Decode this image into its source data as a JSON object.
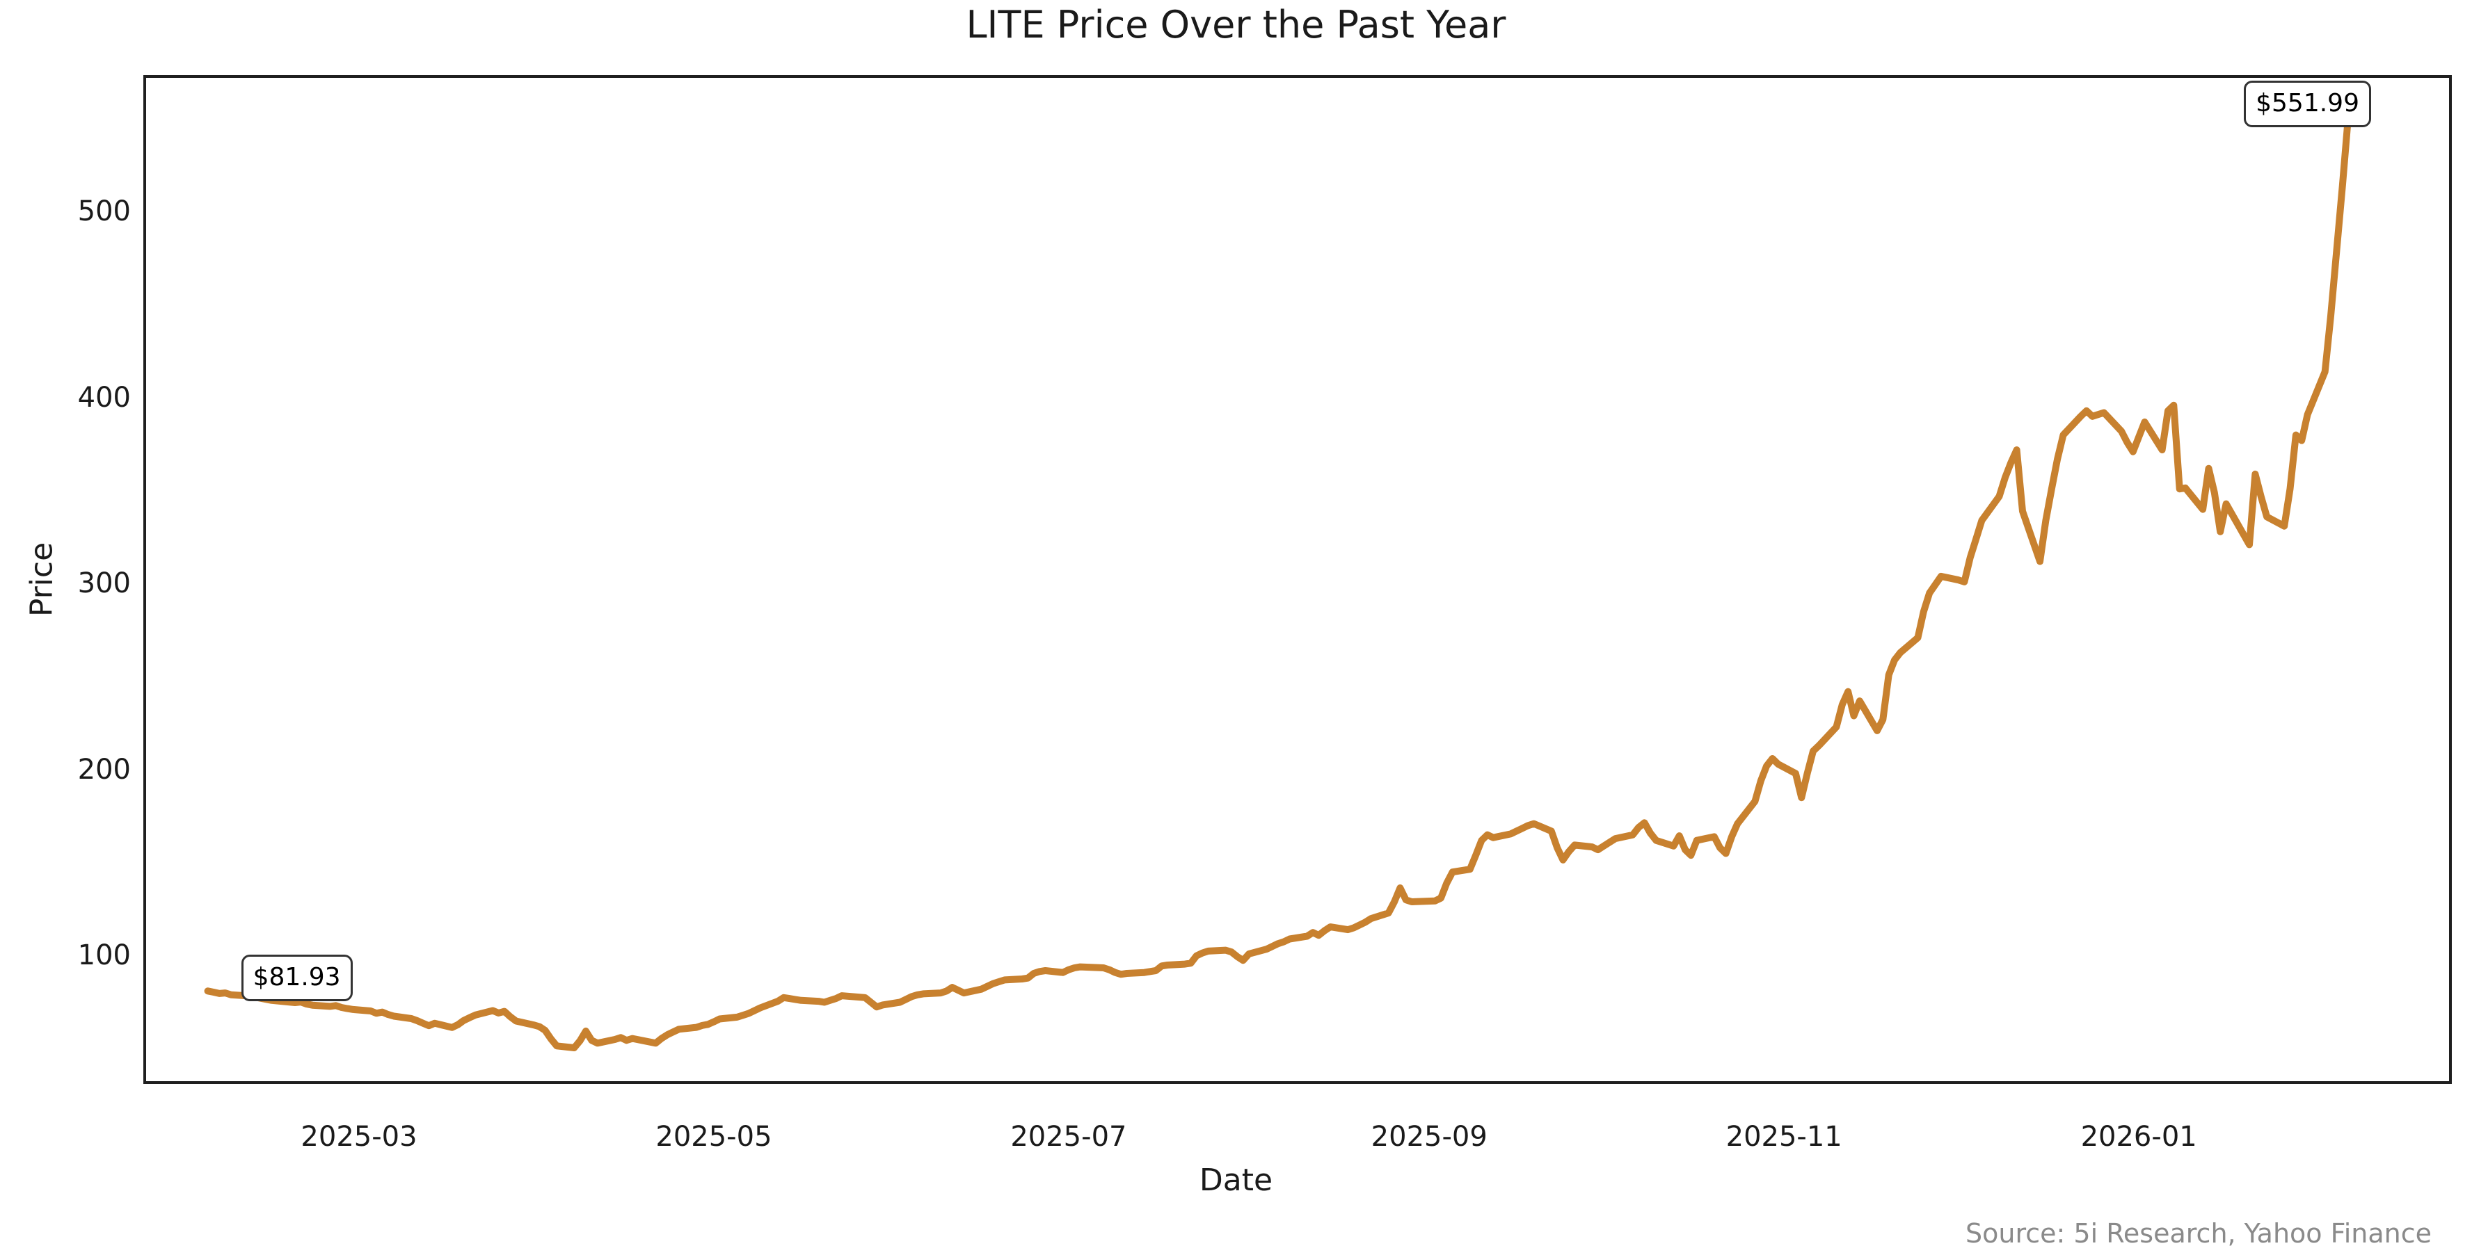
{
  "chart_data": {
    "type": "line",
    "title": "LITE Price Over the Past Year",
    "xlabel": "Date",
    "ylabel": "Price",
    "source_note": "Source: 5i Research, Yahoo Finance",
    "line_color": "#C8812F",
    "axis_color": "#1f1f1f",
    "background_color": "#ffffff",
    "legend": "none",
    "grid": false,
    "ylim": [
      33,
      573
    ],
    "x_ticks": [
      {
        "label": "2025-03",
        "date": "2025-03-01"
      },
      {
        "label": "2025-05",
        "date": "2025-05-01"
      },
      {
        "label": "2025-07",
        "date": "2025-07-01"
      },
      {
        "label": "2025-09",
        "date": "2025-09-01"
      },
      {
        "label": "2025-11",
        "date": "2025-11-01"
      },
      {
        "label": "2026-01",
        "date": "2026-01-01"
      }
    ],
    "y_ticks": [
      {
        "label": "100",
        "value": 100
      },
      {
        "label": "200",
        "value": 200
      },
      {
        "label": "300",
        "value": 300
      },
      {
        "label": "400",
        "value": 400
      },
      {
        "label": "500",
        "value": 500
      }
    ],
    "annotations": [
      {
        "label": "$81.93",
        "date": "2025-02-03",
        "price": 81.93
      },
      {
        "label": "$551.99",
        "date": "2026-02-06",
        "price": 551.99
      }
    ],
    "series": [
      {
        "name": "LITE",
        "points": [
          [
            "2025-02-03",
            81.93
          ],
          [
            "2025-02-04",
            81.3
          ],
          [
            "2025-02-05",
            80.6
          ],
          [
            "2025-02-06",
            80.9
          ],
          [
            "2025-02-07",
            79.9
          ],
          [
            "2025-02-10",
            79.3
          ],
          [
            "2025-02-11",
            78.7
          ],
          [
            "2025-02-12",
            78.1
          ],
          [
            "2025-02-13",
            77.5
          ],
          [
            "2025-02-14",
            76.9
          ],
          [
            "2025-02-18",
            75.7
          ],
          [
            "2025-02-19",
            76.0
          ],
          [
            "2025-02-20",
            74.9
          ],
          [
            "2025-02-21",
            74.3
          ],
          [
            "2025-02-24",
            73.7
          ],
          [
            "2025-02-25",
            74.1
          ],
          [
            "2025-02-26",
            73.1
          ],
          [
            "2025-02-27",
            72.5
          ],
          [
            "2025-02-28",
            72.0
          ],
          [
            "2025-03-03",
            71.2
          ],
          [
            "2025-03-04",
            70.0
          ],
          [
            "2025-03-05",
            70.6
          ],
          [
            "2025-03-06",
            69.3
          ],
          [
            "2025-03-07",
            68.4
          ],
          [
            "2025-03-10",
            67.1
          ],
          [
            "2025-03-11",
            66.0
          ],
          [
            "2025-03-12",
            64.6
          ],
          [
            "2025-03-13",
            63.3
          ],
          [
            "2025-03-14",
            64.6
          ],
          [
            "2025-03-17",
            62.3
          ],
          [
            "2025-03-18",
            63.8
          ],
          [
            "2025-03-19",
            66.1
          ],
          [
            "2025-03-20",
            67.6
          ],
          [
            "2025-03-21",
            69.0
          ],
          [
            "2025-03-24",
            71.4
          ],
          [
            "2025-03-25",
            70.1
          ],
          [
            "2025-03-26",
            71.0
          ],
          [
            "2025-03-27",
            68.1
          ],
          [
            "2025-03-28",
            65.8
          ],
          [
            "2025-03-31",
            63.7
          ],
          [
            "2025-04-01",
            62.8
          ],
          [
            "2025-04-02",
            60.8
          ],
          [
            "2025-04-03",
            56.2
          ],
          [
            "2025-04-04",
            52.4
          ],
          [
            "2025-04-07",
            51.4
          ],
          [
            "2025-04-08",
            55.2
          ],
          [
            "2025-04-09",
            60.4
          ],
          [
            "2025-04-10",
            55.4
          ],
          [
            "2025-04-11",
            53.9
          ],
          [
            "2025-04-14",
            55.9
          ],
          [
            "2025-04-15",
            56.9
          ],
          [
            "2025-04-16",
            55.4
          ],
          [
            "2025-04-17",
            56.4
          ],
          [
            "2025-04-21",
            53.9
          ],
          [
            "2025-04-22",
            56.4
          ],
          [
            "2025-04-23",
            58.4
          ],
          [
            "2025-04-24",
            59.9
          ],
          [
            "2025-04-25",
            61.4
          ],
          [
            "2025-04-28",
            62.4
          ],
          [
            "2025-04-29",
            63.4
          ],
          [
            "2025-04-30",
            64.0
          ],
          [
            "2025-05-01",
            65.4
          ],
          [
            "2025-05-02",
            66.9
          ],
          [
            "2025-05-05",
            67.9
          ],
          [
            "2025-05-06",
            68.9
          ],
          [
            "2025-05-07",
            69.9
          ],
          [
            "2025-05-08",
            71.4
          ],
          [
            "2025-05-09",
            72.9
          ],
          [
            "2025-05-12",
            76.4
          ],
          [
            "2025-05-13",
            78.4
          ],
          [
            "2025-05-14",
            77.9
          ],
          [
            "2025-05-15",
            77.4
          ],
          [
            "2025-05-16",
            76.9
          ],
          [
            "2025-05-19",
            76.4
          ],
          [
            "2025-05-20",
            75.9
          ],
          [
            "2025-05-21",
            76.9
          ],
          [
            "2025-05-22",
            77.9
          ],
          [
            "2025-05-23",
            79.4
          ],
          [
            "2025-05-27",
            78.4
          ],
          [
            "2025-05-28",
            75.9
          ],
          [
            "2025-05-29",
            73.4
          ],
          [
            "2025-05-30",
            74.4
          ],
          [
            "2025-06-02",
            75.9
          ],
          [
            "2025-06-03",
            77.4
          ],
          [
            "2025-06-04",
            78.9
          ],
          [
            "2025-06-05",
            79.9
          ],
          [
            "2025-06-06",
            80.4
          ],
          [
            "2025-06-09",
            80.9
          ],
          [
            "2025-06-10",
            81.9
          ],
          [
            "2025-06-11",
            83.9
          ],
          [
            "2025-06-12",
            82.4
          ],
          [
            "2025-06-13",
            80.9
          ],
          [
            "2025-06-16",
            82.9
          ],
          [
            "2025-06-17",
            84.4
          ],
          [
            "2025-06-18",
            85.9
          ],
          [
            "2025-06-19",
            86.9
          ],
          [
            "2025-06-20",
            87.9
          ],
          [
            "2025-06-23",
            88.4
          ],
          [
            "2025-06-24",
            88.9
          ],
          [
            "2025-06-25",
            91.4
          ],
          [
            "2025-06-26",
            92.4
          ],
          [
            "2025-06-27",
            92.9
          ],
          [
            "2025-06-30",
            91.9
          ],
          [
            "2025-07-01",
            93.4
          ],
          [
            "2025-07-02",
            94.4
          ],
          [
            "2025-07-03",
            94.9
          ],
          [
            "2025-07-07",
            94.4
          ],
          [
            "2025-07-08",
            93.4
          ],
          [
            "2025-07-09",
            91.9
          ],
          [
            "2025-07-10",
            90.9
          ],
          [
            "2025-07-11",
            91.4
          ],
          [
            "2025-07-14",
            91.9
          ],
          [
            "2025-07-15",
            92.4
          ],
          [
            "2025-07-16",
            92.9
          ],
          [
            "2025-07-17",
            95.4
          ],
          [
            "2025-07-18",
            95.9
          ],
          [
            "2025-07-21",
            96.4
          ],
          [
            "2025-07-22",
            96.9
          ],
          [
            "2025-07-23",
            100.9
          ],
          [
            "2025-07-24",
            102.4
          ],
          [
            "2025-07-25",
            103.4
          ],
          [
            "2025-07-28",
            103.9
          ],
          [
            "2025-07-29",
            102.9
          ],
          [
            "2025-07-30",
            100.4
          ],
          [
            "2025-07-31",
            98.4
          ],
          [
            "2025-08-01",
            101.9
          ],
          [
            "2025-08-04",
            104.4
          ],
          [
            "2025-08-05",
            105.9
          ],
          [
            "2025-08-06",
            107.4
          ],
          [
            "2025-08-07",
            108.4
          ],
          [
            "2025-08-08",
            109.9
          ],
          [
            "2025-08-11",
            111.4
          ],
          [
            "2025-08-12",
            113.4
          ],
          [
            "2025-08-13",
            111.9
          ],
          [
            "2025-08-14",
            114.4
          ],
          [
            "2025-08-15",
            116.4
          ],
          [
            "2025-08-18",
            114.9
          ],
          [
            "2025-08-19",
            115.9
          ],
          [
            "2025-08-20",
            117.4
          ],
          [
            "2025-08-21",
            118.9
          ],
          [
            "2025-08-22",
            120.9
          ],
          [
            "2025-08-25",
            123.9
          ],
          [
            "2025-08-26",
            129.9
          ],
          [
            "2025-08-27",
            137.4
          ],
          [
            "2025-08-28",
            130.9
          ],
          [
            "2025-08-29",
            129.9
          ],
          [
            "2025-09-02",
            130.4
          ],
          [
            "2025-09-03",
            131.9
          ],
          [
            "2025-09-04",
            139.9
          ],
          [
            "2025-09-05",
            145.9
          ],
          [
            "2025-09-08",
            147.4
          ],
          [
            "2025-09-09",
            154.9
          ],
          [
            "2025-09-10",
            162.9
          ],
          [
            "2025-09-11",
            165.9
          ],
          [
            "2025-09-12",
            164.4
          ],
          [
            "2025-09-15",
            166.4
          ],
          [
            "2025-09-16",
            167.9
          ],
          [
            "2025-09-17",
            169.4
          ],
          [
            "2025-09-18",
            170.9
          ],
          [
            "2025-09-19",
            171.9
          ],
          [
            "2025-09-22",
            167.9
          ],
          [
            "2025-09-23",
            158.9
          ],
          [
            "2025-09-24",
            152.4
          ],
          [
            "2025-09-25",
            156.9
          ],
          [
            "2025-09-26",
            160.4
          ],
          [
            "2025-09-29",
            159.4
          ],
          [
            "2025-09-30",
            157.9
          ],
          [
            "2025-10-01",
            159.9
          ],
          [
            "2025-10-02",
            161.9
          ],
          [
            "2025-10-03",
            163.9
          ],
          [
            "2025-10-06",
            165.9
          ],
          [
            "2025-10-07",
            169.9
          ],
          [
            "2025-10-08",
            172.4
          ],
          [
            "2025-10-09",
            166.9
          ],
          [
            "2025-10-10",
            162.9
          ],
          [
            "2025-10-13",
            159.9
          ],
          [
            "2025-10-14",
            165.4
          ],
          [
            "2025-10-15",
            157.9
          ],
          [
            "2025-10-16",
            154.9
          ],
          [
            "2025-10-17",
            162.9
          ],
          [
            "2025-10-20",
            164.9
          ],
          [
            "2025-10-21",
            158.9
          ],
          [
            "2025-10-22",
            155.9
          ],
          [
            "2025-10-23",
            164.9
          ],
          [
            "2025-10-24",
            171.9
          ],
          [
            "2025-10-27",
            183.9
          ],
          [
            "2025-10-28",
            194.9
          ],
          [
            "2025-10-29",
            202.9
          ],
          [
            "2025-10-30",
            206.9
          ],
          [
            "2025-10-31",
            203.9
          ],
          [
            "2025-11-03",
            198.9
          ],
          [
            "2025-11-04",
            185.9
          ],
          [
            "2025-11-05",
            198.9
          ],
          [
            "2025-11-06",
            210.9
          ],
          [
            "2025-11-07",
            213.9
          ],
          [
            "2025-11-10",
            223.9
          ],
          [
            "2025-11-11",
            235.9
          ],
          [
            "2025-11-12",
            242.9
          ],
          [
            "2025-11-13",
            229.9
          ],
          [
            "2025-11-14",
            237.9
          ],
          [
            "2025-11-17",
            221.9
          ],
          [
            "2025-11-18",
            227.9
          ],
          [
            "2025-11-19",
            251.9
          ],
          [
            "2025-11-20",
            259.9
          ],
          [
            "2025-11-21",
            263.9
          ],
          [
            "2025-11-24",
            271.9
          ],
          [
            "2025-11-25",
            285.9
          ],
          [
            "2025-11-26",
            295.9
          ],
          [
            "2025-11-28",
            304.9
          ],
          [
            "2025-12-01",
            302.9
          ],
          [
            "2025-12-02",
            301.9
          ],
          [
            "2025-12-03",
            314.9
          ],
          [
            "2025-12-04",
            324.9
          ],
          [
            "2025-12-05",
            334.9
          ],
          [
            "2025-12-08",
            347.9
          ],
          [
            "2025-12-09",
            357.9
          ],
          [
            "2025-12-10",
            365.9
          ],
          [
            "2025-12-11",
            372.9
          ],
          [
            "2025-12-12",
            339.9
          ],
          [
            "2025-12-15",
            312.9
          ],
          [
            "2025-12-16",
            334.9
          ],
          [
            "2025-12-17",
            351.9
          ],
          [
            "2025-12-18",
            367.9
          ],
          [
            "2025-12-19",
            380.9
          ],
          [
            "2025-12-22",
            390.9
          ],
          [
            "2025-12-23",
            393.9
          ],
          [
            "2025-12-24",
            390.9
          ],
          [
            "2025-12-26",
            392.9
          ],
          [
            "2025-12-29",
            382.9
          ],
          [
            "2025-12-30",
            376.9
          ],
          [
            "2025-12-31",
            371.9
          ],
          [
            "2026-01-02",
            387.9
          ],
          [
            "2026-01-05",
            372.9
          ],
          [
            "2026-01-06",
            393.9
          ],
          [
            "2026-01-07",
            396.9
          ],
          [
            "2026-01-08",
            351.9
          ],
          [
            "2026-01-09",
            352.4
          ],
          [
            "2026-01-12",
            340.9
          ],
          [
            "2026-01-13",
            362.9
          ],
          [
            "2026-01-14",
            349.9
          ],
          [
            "2026-01-15",
            328.9
          ],
          [
            "2026-01-16",
            343.9
          ],
          [
            "2026-01-20",
            321.9
          ],
          [
            "2026-01-21",
            359.9
          ],
          [
            "2026-01-22",
            347.9
          ],
          [
            "2026-01-23",
            336.9
          ],
          [
            "2026-01-26",
            331.9
          ],
          [
            "2026-01-27",
            351.9
          ],
          [
            "2026-01-28",
            380.9
          ],
          [
            "2026-01-29",
            377.9
          ],
          [
            "2026-01-30",
            391.9
          ],
          [
            "2026-02-02",
            414.9
          ],
          [
            "2026-02-03",
            444.9
          ],
          [
            "2026-02-04",
            479.9
          ],
          [
            "2026-02-05",
            514.9
          ],
          [
            "2026-02-06",
            551.99
          ]
        ]
      }
    ]
  }
}
